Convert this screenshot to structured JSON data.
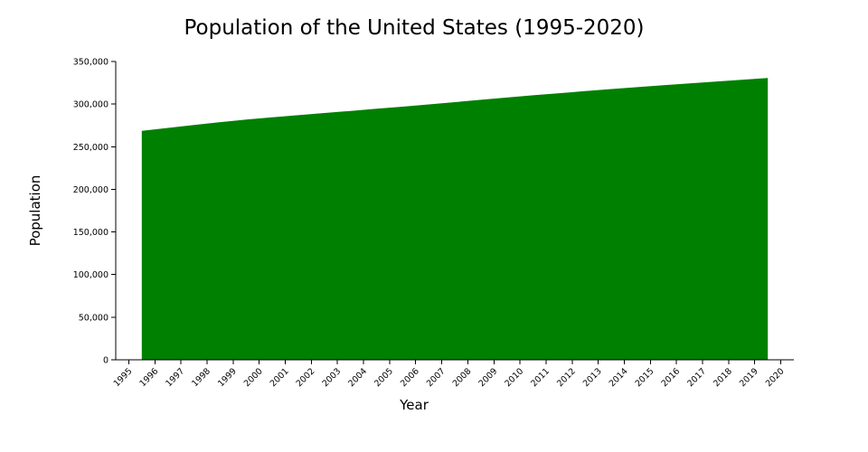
{
  "chart_data": {
    "type": "area",
    "title": "Population of the United States (1995-2020)",
    "xlabel": "Year",
    "ylabel": "Population",
    "x_ticks": [
      1995,
      1996,
      1997,
      1998,
      1999,
      2000,
      2001,
      2002,
      2003,
      2004,
      2005,
      2006,
      2007,
      2008,
      2009,
      2010,
      2011,
      2012,
      2013,
      2014,
      2015,
      2016,
      2017,
      2018,
      2019,
      2020
    ],
    "xlim": [
      1994.5,
      2020.5
    ],
    "y_ticks": [
      0,
      50000,
      100000,
      150000,
      200000,
      250000,
      300000,
      350000
    ],
    "y_tick_labels": [
      "0",
      "50,000",
      "100,000",
      "150,000",
      "200,000",
      "250,000",
      "300,000",
      "350,000"
    ],
    "ylim": [
      0,
      350000
    ],
    "x": [
      1995.5,
      1996.5,
      1997.5,
      1998.5,
      1999.5,
      2000.5,
      2001.5,
      2002.5,
      2003.5,
      2004.5,
      2005.5,
      2006.5,
      2007.5,
      2008.5,
      2009.5,
      2010.5,
      2011.5,
      2012.5,
      2013.5,
      2014.5,
      2015.5,
      2016.5,
      2017.5,
      2018.5,
      2019.5
    ],
    "values": [
      268500,
      272000,
      275500,
      278800,
      281800,
      284500,
      287000,
      289500,
      292000,
      294500,
      297000,
      299600,
      302300,
      305000,
      307700,
      310300,
      312800,
      315200,
      317600,
      319900,
      322100,
      324300,
      326500,
      328600,
      330700
    ],
    "color": "#008000",
    "grid": false,
    "legend": "none"
  }
}
